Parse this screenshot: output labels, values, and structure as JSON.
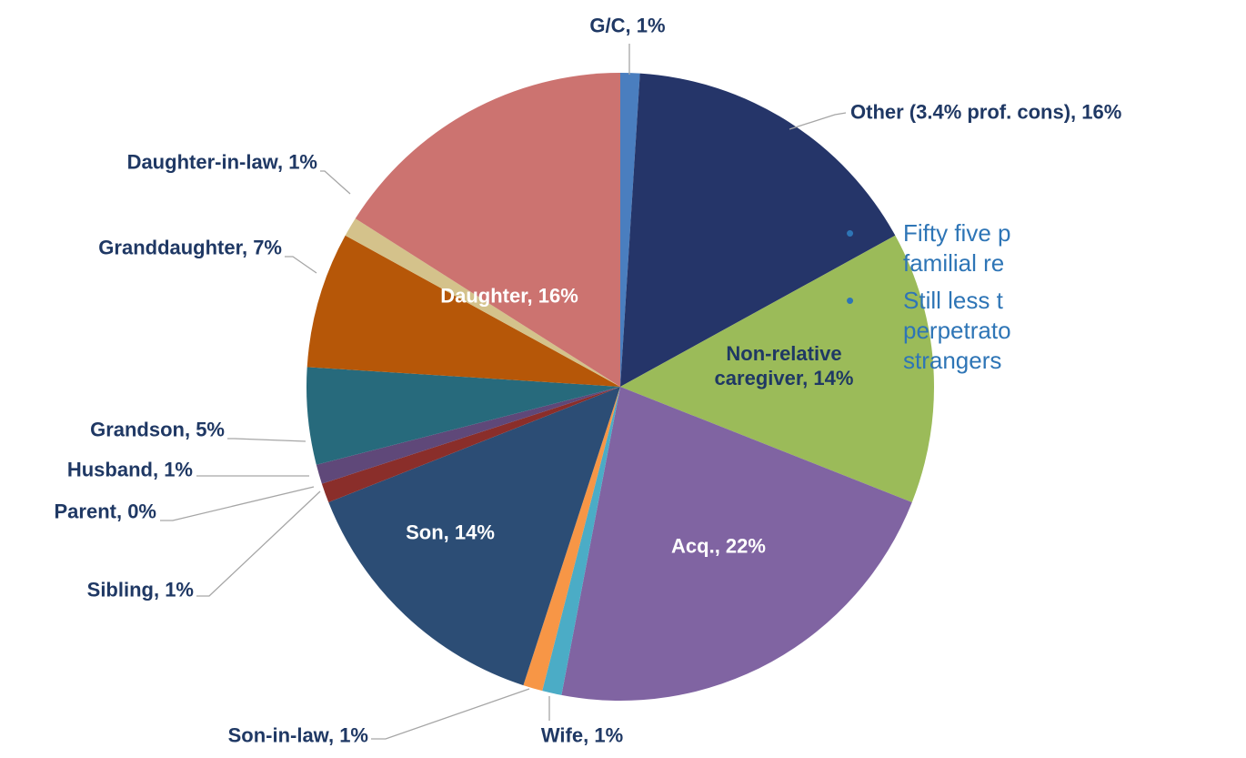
{
  "chart_data": {
    "type": "pie",
    "labels": [
      "G/C, 1%",
      "Other (3.4% prof. cons), 16%",
      "Non-relative caregiver, 14%",
      "Acq., 22%",
      "Wife, 1%",
      "Son-in-law, 1%",
      "Son, 14%",
      "Sibling, 1%",
      "Parent, 0%",
      "Husband, 1%",
      "Grandson, 5%",
      "Granddaughter, 7%",
      "Daughter-in-law, 1%",
      "Daughter, 16%"
    ],
    "values": [
      1,
      16,
      14,
      22,
      1,
      1,
      14,
      1,
      0,
      1,
      5,
      7,
      1,
      16
    ],
    "colors": [
      "#4a7ebf",
      "#253569",
      "#9bbb59",
      "#8064a2",
      "#4bacc6",
      "#f79646",
      "#2c4d75",
      "#8a2e2a",
      "#b04040",
      "#5f4879",
      "#276a7c",
      "#b65708",
      "#d4c28b",
      "#cc7370"
    ]
  },
  "bullets": [
    [
      "Fifty five p",
      "familial re"
    ],
    [
      "Still less t",
      "perpetrato",
      "strangers"
    ]
  ]
}
